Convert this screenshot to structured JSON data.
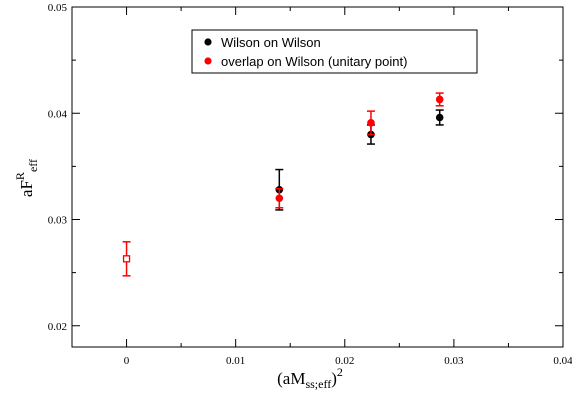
{
  "chart_data": {
    "type": "scatter",
    "xlabel": {
      "base": "(aM",
      "sub": "ss;eff",
      "close": ")",
      "sup": "2"
    },
    "ylabel": {
      "base": "aF",
      "sup": "R",
      "sub": "eff"
    },
    "xlim": [
      -0.005,
      0.04
    ],
    "ylim": [
      0.018,
      0.05
    ],
    "x_ticks": [
      0,
      0.01,
      0.02,
      0.03,
      0.04
    ],
    "x_tick_labels": [
      "0",
      "0.01",
      "0.02",
      "0.03",
      "0.04"
    ],
    "y_ticks": [
      0.02,
      0.03,
      0.04,
      0.05
    ],
    "y_tick_labels": [
      "0.02",
      "0.03",
      "0.04",
      "0.05"
    ],
    "grid": false,
    "legend_position": "top-center",
    "series": [
      {
        "name": "Wilson on Wilson",
        "color": "#000000",
        "marker": "filled-circle",
        "points": [
          {
            "x": 0.014,
            "y": 0.0328,
            "err": 0.0019
          },
          {
            "x": 0.0224,
            "y": 0.038,
            "err": 0.0009
          },
          {
            "x": 0.0287,
            "y": 0.0396,
            "err": 0.0007
          }
        ]
      },
      {
        "name": "overlap on Wilson (unitary point)",
        "color": "#ff0000",
        "marker": "filled-circle",
        "points": [
          {
            "x": 0.014,
            "y": 0.032,
            "err": 0.0009
          },
          {
            "x": 0.0224,
            "y": 0.0391,
            "err": 0.0011
          },
          {
            "x": 0.0287,
            "y": 0.0413,
            "err": 0.0006
          }
        ]
      },
      {
        "color": "#ff0000",
        "marker": "open-square",
        "points": [
          {
            "x": 0.0,
            "y": 0.0263,
            "err": 0.0016
          }
        ]
      }
    ]
  }
}
